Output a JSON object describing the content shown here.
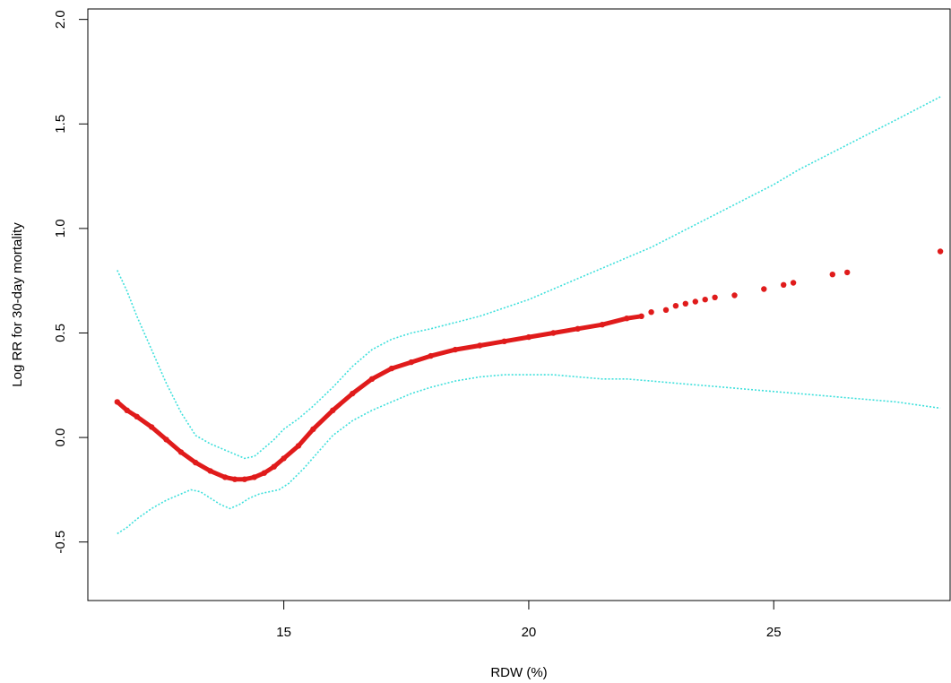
{
  "chart_data": {
    "type": "scatter",
    "title": "",
    "xlabel": "RDW (%)",
    "ylabel": "Log RR for 30-day mortality",
    "xlim": [
      11.0,
      28.6
    ],
    "ylim": [
      -0.78,
      2.05
    ],
    "xticks": [
      15,
      20,
      25
    ],
    "yticks": [
      -0.5,
      0.0,
      0.5,
      1.0,
      1.5,
      2.0
    ],
    "xtick_labels": [
      "15",
      "20",
      "25"
    ],
    "ytick_labels": [
      "-0.5",
      "0.0",
      "0.5",
      "1.0",
      "1.5",
      "2.0"
    ],
    "grid": false,
    "legend": "none",
    "colors": {
      "estimate": "#e01b1b",
      "ci": "#3fe0dc",
      "axis": "#000000"
    },
    "series": [
      {
        "role": "estimate",
        "style": "points",
        "x": [
          11.6,
          11.8,
          12.0,
          12.3,
          12.6,
          12.9,
          13.2,
          13.5,
          13.8,
          14.0,
          14.2,
          14.4,
          14.6,
          14.8,
          15.0,
          15.3,
          15.6,
          16.0,
          16.4,
          16.8,
          17.2,
          17.6,
          18.0,
          18.5,
          19.0,
          19.5,
          20.0,
          20.5,
          21.0,
          21.5,
          22.0,
          22.3,
          22.5,
          22.8,
          23.0,
          23.2,
          23.4,
          23.6,
          23.8,
          24.2,
          24.8,
          25.2,
          25.4,
          26.2,
          26.5,
          28.4
        ],
        "y": [
          0.17,
          0.13,
          0.1,
          0.05,
          -0.01,
          -0.07,
          -0.12,
          -0.16,
          -0.19,
          -0.2,
          -0.2,
          -0.19,
          -0.17,
          -0.14,
          -0.1,
          -0.04,
          0.04,
          0.13,
          0.21,
          0.28,
          0.33,
          0.36,
          0.39,
          0.42,
          0.44,
          0.46,
          0.48,
          0.5,
          0.52,
          0.54,
          0.57,
          0.58,
          0.6,
          0.61,
          0.63,
          0.64,
          0.65,
          0.66,
          0.67,
          0.68,
          0.71,
          0.73,
          0.74,
          0.78,
          0.79,
          0.89
        ]
      },
      {
        "role": "ci_upper",
        "style": "dotted-line",
        "x": [
          11.6,
          11.8,
          12.0,
          12.3,
          12.6,
          12.9,
          13.2,
          13.5,
          13.8,
          14.0,
          14.2,
          14.4,
          14.6,
          14.8,
          15.0,
          15.3,
          15.6,
          16.0,
          16.4,
          16.8,
          17.2,
          17.6,
          18.0,
          18.5,
          19.0,
          19.5,
          20.0,
          20.5,
          21.0,
          21.5,
          22.0,
          22.5,
          23.0,
          23.5,
          24.0,
          24.5,
          25.0,
          25.5,
          26.0,
          26.5,
          27.0,
          27.5,
          28.4
        ],
        "y": [
          0.8,
          0.7,
          0.58,
          0.42,
          0.26,
          0.12,
          0.01,
          -0.03,
          -0.06,
          -0.08,
          -0.1,
          -0.09,
          -0.05,
          -0.01,
          0.04,
          0.09,
          0.15,
          0.24,
          0.34,
          0.42,
          0.47,
          0.5,
          0.52,
          0.55,
          0.58,
          0.62,
          0.66,
          0.71,
          0.76,
          0.81,
          0.86,
          0.91,
          0.97,
          1.03,
          1.09,
          1.15,
          1.21,
          1.28,
          1.34,
          1.4,
          1.46,
          1.52,
          1.63
        ]
      },
      {
        "role": "ci_lower",
        "style": "dotted-line",
        "x": [
          11.6,
          11.8,
          12.0,
          12.3,
          12.6,
          12.9,
          13.1,
          13.3,
          13.5,
          13.7,
          13.9,
          14.1,
          14.3,
          14.5,
          14.7,
          14.9,
          15.1,
          15.4,
          15.7,
          16.0,
          16.4,
          16.8,
          17.2,
          17.6,
          18.0,
          18.5,
          19.0,
          19.5,
          20.0,
          20.5,
          21.0,
          21.5,
          22.0,
          22.5,
          23.0,
          23.5,
          24.0,
          24.5,
          25.0,
          25.5,
          26.0,
          26.5,
          27.0,
          27.5,
          28.4
        ],
        "y": [
          -0.46,
          -0.43,
          -0.39,
          -0.34,
          -0.3,
          -0.27,
          -0.25,
          -0.26,
          -0.29,
          -0.32,
          -0.34,
          -0.32,
          -0.29,
          -0.27,
          -0.26,
          -0.25,
          -0.22,
          -0.15,
          -0.07,
          0.01,
          0.08,
          0.13,
          0.17,
          0.21,
          0.24,
          0.27,
          0.29,
          0.3,
          0.3,
          0.3,
          0.29,
          0.28,
          0.28,
          0.27,
          0.26,
          0.25,
          0.24,
          0.23,
          0.22,
          0.21,
          0.2,
          0.19,
          0.18,
          0.17,
          0.14
        ]
      }
    ]
  }
}
